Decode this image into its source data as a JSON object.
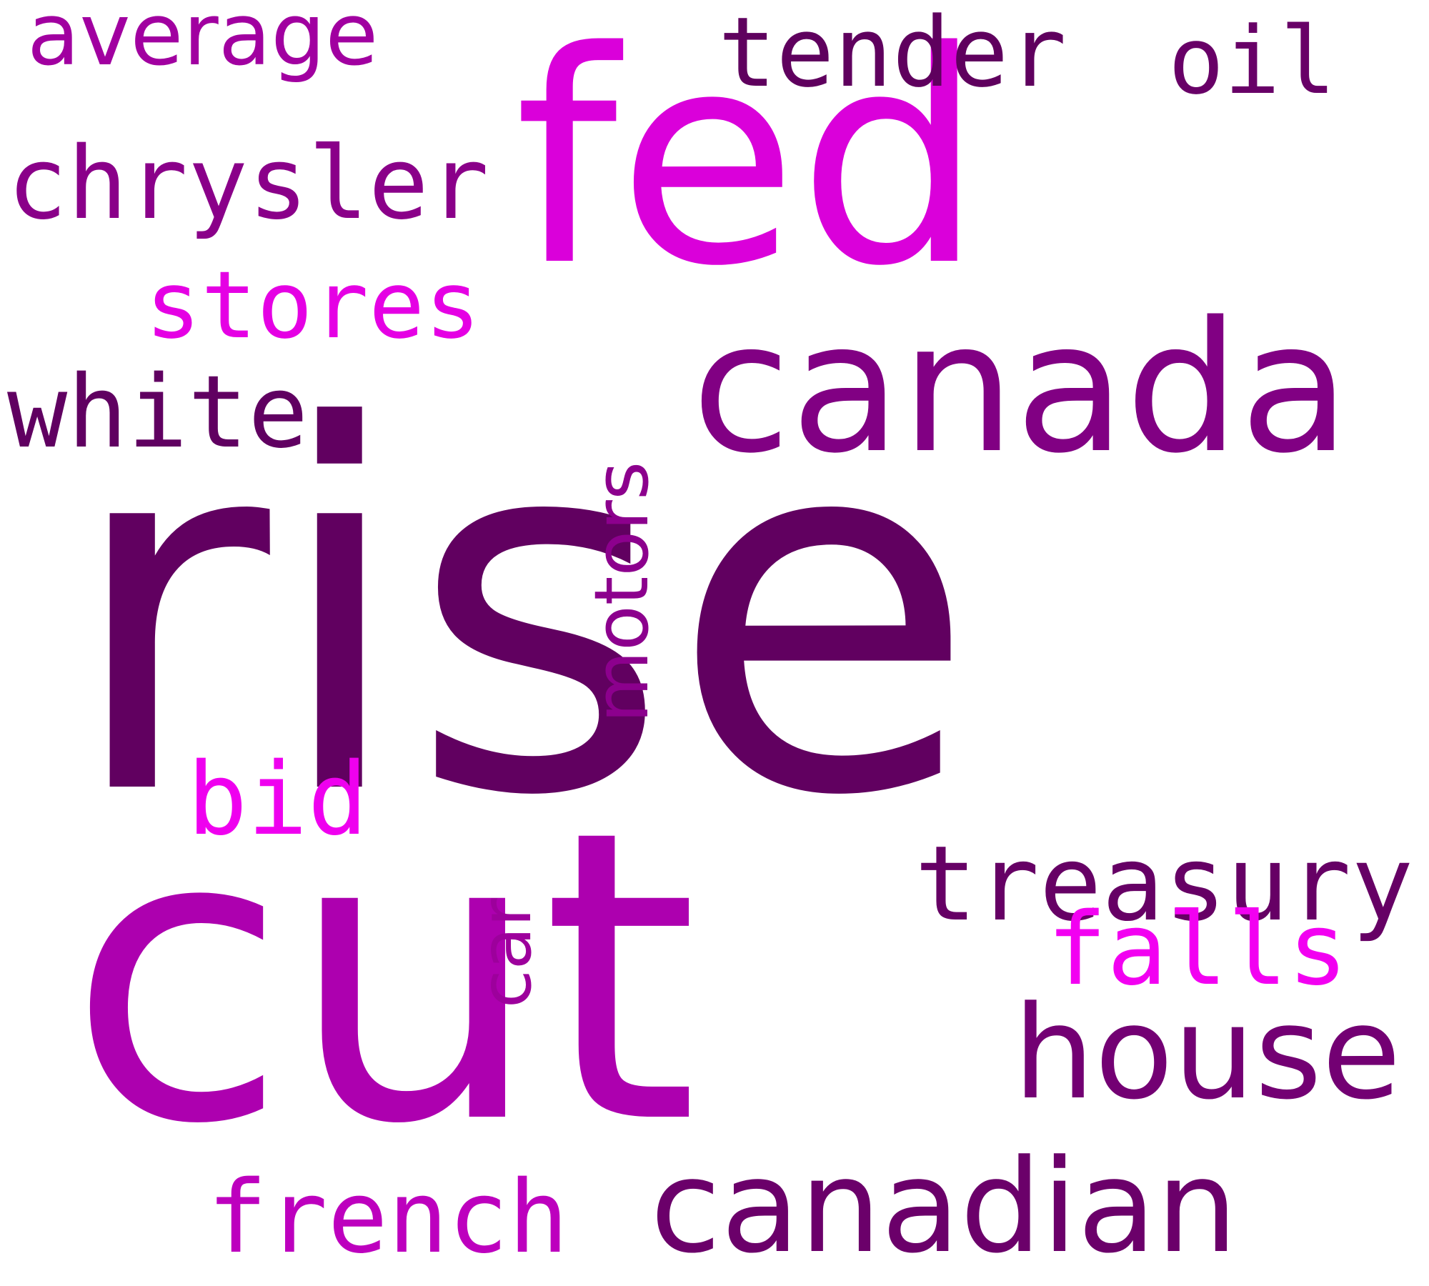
{
  "words": {
    "rise": {
      "text": "rise",
      "color": "#610060"
    },
    "cut": {
      "text": "cut",
      "color": "#AD00AF"
    },
    "fed": {
      "text": "fed",
      "color": "#DA00DA"
    },
    "canada": {
      "text": "canada",
      "color": "#810083"
    },
    "canadian": {
      "text": "canadian",
      "color": "#6B006A"
    },
    "house": {
      "text": "house",
      "color": "#730073"
    },
    "treasury": {
      "text": "treasury",
      "color": "#660065"
    },
    "falls": {
      "text": "falls",
      "color": "#F200F1"
    },
    "chrysler": {
      "text": "chrysler",
      "color": "#8A0089"
    },
    "stores": {
      "text": "stores",
      "color": "#E500E4"
    },
    "white": {
      "text": "white",
      "color": "#600061"
    },
    "average": {
      "text": "average",
      "color": "#A100A0"
    },
    "tender": {
      "text": "tender",
      "color": "#5F005E"
    },
    "oil": {
      "text": "oil",
      "color": "#680067"
    },
    "motors": {
      "text": "motors",
      "color": "#8C008D"
    },
    "car": {
      "text": "car",
      "color": "#9D009C"
    },
    "bid": {
      "text": "bid",
      "color": "#EF00EF"
    },
    "french": {
      "text": "french",
      "color": "#BD00BE"
    }
  }
}
